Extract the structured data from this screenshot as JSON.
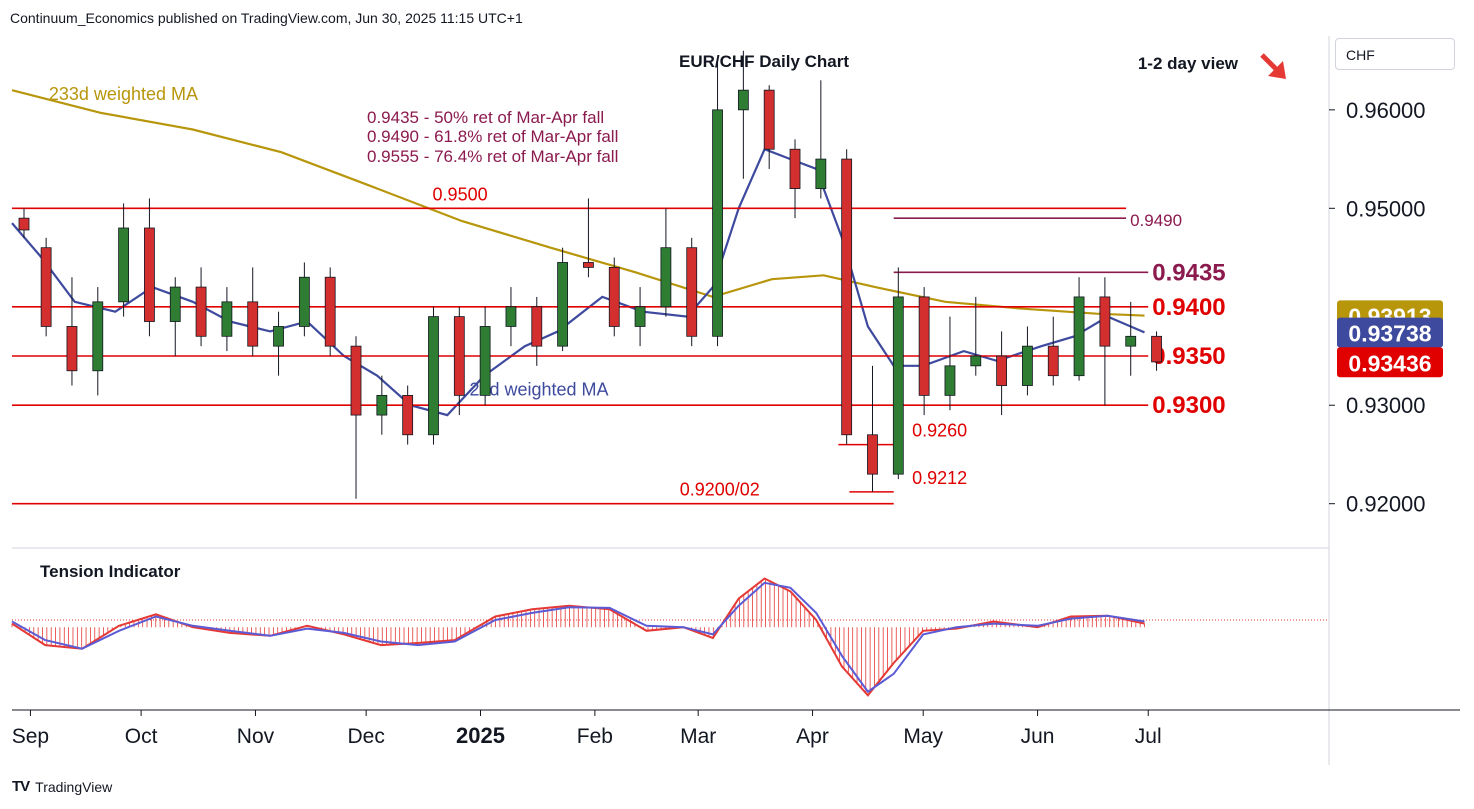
{
  "header": {
    "publisher": "Continuum_Economics published on TradingView.com, Jun 30, 2025 11:15 UTC+1"
  },
  "currency_selector": {
    "value": "CHF"
  },
  "footer": {
    "logo_text": "TV",
    "brand": "TradingView"
  },
  "colors": {
    "bull": "#2e7d32",
    "bear": "#d32f2f",
    "ma21": "#3e4a9e",
    "ma233": "#b8960c",
    "support": "#e00000",
    "fib": "#8b1a4e",
    "arrow": "#e53935"
  },
  "chart_data": [
    {
      "type": "candlestick",
      "title": "EUR/CHF Daily Chart",
      "subtitle": "1-2 day view",
      "direction": "down",
      "ylim": [
        0.9155,
        0.9675
      ],
      "x_axis": {
        "range": [
          "2024-08-27",
          "2025-08-19"
        ],
        "ticks": [
          {
            "date": "2024-09-01",
            "label": "Sep"
          },
          {
            "date": "2024-10-01",
            "label": "Oct"
          },
          {
            "date": "2024-11-01",
            "label": "Nov"
          },
          {
            "date": "2024-12-01",
            "label": "Dec"
          },
          {
            "date": "2025-01-01",
            "label": "2025"
          },
          {
            "date": "2025-02-01",
            "label": "Feb"
          },
          {
            "date": "2025-03-01",
            "label": "Mar"
          },
          {
            "date": "2025-04-01",
            "label": "Apr"
          },
          {
            "date": "2025-05-01",
            "label": "May"
          },
          {
            "date": "2025-06-01",
            "label": "Jun"
          },
          {
            "date": "2025-07-01",
            "label": "Jul"
          }
        ]
      },
      "y_axis": {
        "ticks": [
          {
            "value": 0.96,
            "label": "0.96000"
          },
          {
            "value": 0.95,
            "label": "0.95000"
          },
          {
            "value": 0.93,
            "label": "0.93000"
          },
          {
            "value": 0.92,
            "label": "0.92000"
          }
        ]
      },
      "price_tags": [
        {
          "value": 0.93913,
          "label": "0.93913",
          "color": "#b8960c"
        },
        {
          "value": 0.93738,
          "label": "0.93738",
          "color": "#3e4a9e"
        },
        {
          "value": 0.93436,
          "label": "0.93436",
          "color": "#e00000"
        }
      ],
      "levels": [
        {
          "value": 0.95,
          "label": "0.9500",
          "from": "2024-08-27",
          "to": "2025-06-25",
          "label_date": "2024-12-19",
          "color": "#e00000"
        },
        {
          "value": 0.949,
          "label": "0.9490",
          "from": "2025-04-23",
          "to": "2025-06-25",
          "color": "#8b1a4e"
        },
        {
          "value": 0.9435,
          "label": "0.9435",
          "from": "2025-04-23",
          "to": "2025-07-01",
          "color": "#8b1a4e"
        },
        {
          "value": 0.94,
          "label": "0.9400",
          "from": "2024-08-27",
          "to": "2025-07-01",
          "color": "#e00000"
        },
        {
          "value": 0.935,
          "label": "0.9350",
          "from": "2024-08-27",
          "to": "2025-07-01",
          "color": "#e00000"
        },
        {
          "value": 0.93,
          "label": "0.9300",
          "from": "2024-08-27",
          "to": "2025-07-01",
          "color": "#e00000"
        },
        {
          "value": 0.926,
          "label": "0.9260",
          "from": "2025-04-08",
          "to": "2025-04-23",
          "label_date": "2025-04-28",
          "color": "#e00000"
        },
        {
          "value": 0.9212,
          "label": "0.9212",
          "from": "2025-04-11",
          "to": "2025-04-23",
          "label_date": "2025-04-28",
          "color": "#e00000"
        },
        {
          "value": 0.92,
          "label": "0.9200/02",
          "from": "2024-08-27",
          "to": "2025-04-23",
          "label_date": "2025-02-24",
          "color": "#e00000"
        }
      ],
      "fib_notes": [
        "0.9435 - 50% ret of Mar-Apr fall",
        "0.9490 - 61.8% ret of Mar-Apr fall",
        "0.9555 - 76.4% ret of Mar-Apr fall"
      ],
      "series": [
        {
          "name": "233d weighted MA",
          "color": "#b8960c",
          "label_date": "2024-09-06",
          "label_value": 0.961,
          "x": [
            "2024-08-27",
            "2024-09-20",
            "2024-10-15",
            "2024-11-08",
            "2024-12-02",
            "2024-12-27",
            "2025-01-20",
            "2025-02-12",
            "2025-03-05",
            "2025-03-21",
            "2025-04-04",
            "2025-04-18",
            "2025-05-07",
            "2025-05-28",
            "2025-06-17",
            "2025-06-30"
          ],
          "y": [
            0.962,
            0.9597,
            0.958,
            0.9557,
            0.9523,
            0.9487,
            0.946,
            0.9435,
            0.941,
            0.9428,
            0.9432,
            0.942,
            0.9405,
            0.9398,
            0.9393,
            0.9391
          ]
        },
        {
          "name": "21d weighted MA",
          "color": "#3e4a9e",
          "label_date": "2024-12-29",
          "label_value": 0.931,
          "x": [
            "2024-08-27",
            "2024-09-04",
            "2024-09-13",
            "2024-09-24",
            "2024-10-04",
            "2024-10-15",
            "2024-10-25",
            "2024-11-05",
            "2024-11-15",
            "2024-11-25",
            "2024-12-04",
            "2024-12-13",
            "2024-12-23",
            "2025-01-02",
            "2025-01-13",
            "2025-01-22",
            "2025-02-03",
            "2025-02-14",
            "2025-02-26",
            "2025-03-05",
            "2025-03-12",
            "2025-03-19",
            "2025-03-26",
            "2025-04-02",
            "2025-04-09",
            "2025-04-16",
            "2025-04-23",
            "2025-05-01",
            "2025-05-12",
            "2025-05-21",
            "2025-06-02",
            "2025-06-11",
            "2025-06-20",
            "2025-06-30"
          ],
          "y": [
            0.9485,
            0.945,
            0.9405,
            0.9395,
            0.942,
            0.9405,
            0.9385,
            0.9375,
            0.9385,
            0.935,
            0.933,
            0.93,
            0.929,
            0.933,
            0.936,
            0.9375,
            0.941,
            0.9395,
            0.939,
            0.942,
            0.95,
            0.956,
            0.955,
            0.954,
            0.947,
            0.938,
            0.934,
            0.934,
            0.9355,
            0.9345,
            0.936,
            0.937,
            0.939,
            0.9374
          ]
        }
      ],
      "candles": [
        {
          "d": "2024-08-27",
          "o": 0.949,
          "h": 0.95,
          "l": 0.947,
          "c": 0.9478
        },
        {
          "d": "2024-09-02",
          "o": 0.946,
          "h": 0.947,
          "l": 0.937,
          "c": 0.938
        },
        {
          "d": "2024-09-09",
          "o": 0.938,
          "h": 0.943,
          "l": 0.932,
          "c": 0.9335
        },
        {
          "d": "2024-09-16",
          "o": 0.9335,
          "h": 0.942,
          "l": 0.931,
          "c": 0.9405
        },
        {
          "d": "2024-09-23",
          "o": 0.9405,
          "h": 0.9505,
          "l": 0.939,
          "c": 0.948
        },
        {
          "d": "2024-09-30",
          "o": 0.948,
          "h": 0.951,
          "l": 0.937,
          "c": 0.9385
        },
        {
          "d": "2024-10-07",
          "o": 0.9385,
          "h": 0.943,
          "l": 0.935,
          "c": 0.942
        },
        {
          "d": "2024-10-14",
          "o": 0.942,
          "h": 0.944,
          "l": 0.936,
          "c": 0.937
        },
        {
          "d": "2024-10-21",
          "o": 0.937,
          "h": 0.942,
          "l": 0.9355,
          "c": 0.9405
        },
        {
          "d": "2024-10-28",
          "o": 0.9405,
          "h": 0.944,
          "l": 0.935,
          "c": 0.936
        },
        {
          "d": "2024-11-04",
          "o": 0.936,
          "h": 0.9395,
          "l": 0.933,
          "c": 0.938
        },
        {
          "d": "2024-11-11",
          "o": 0.938,
          "h": 0.9445,
          "l": 0.937,
          "c": 0.943
        },
        {
          "d": "2024-11-18",
          "o": 0.943,
          "h": 0.944,
          "l": 0.935,
          "c": 0.936
        },
        {
          "d": "2024-11-25",
          "o": 0.936,
          "h": 0.937,
          "l": 0.9205,
          "c": 0.929
        },
        {
          "d": "2024-12-02",
          "o": 0.929,
          "h": 0.933,
          "l": 0.927,
          "c": 0.931
        },
        {
          "d": "2024-12-09",
          "o": 0.931,
          "h": 0.932,
          "l": 0.926,
          "c": 0.927
        },
        {
          "d": "2024-12-16",
          "o": 0.927,
          "h": 0.94,
          "l": 0.926,
          "c": 0.939
        },
        {
          "d": "2024-12-23",
          "o": 0.939,
          "h": 0.94,
          "l": 0.929,
          "c": 0.931
        },
        {
          "d": "2024-12-30",
          "o": 0.931,
          "h": 0.94,
          "l": 0.93,
          "c": 0.938
        },
        {
          "d": "2025-01-06",
          "o": 0.938,
          "h": 0.942,
          "l": 0.936,
          "c": 0.94
        },
        {
          "d": "2025-01-13",
          "o": 0.94,
          "h": 0.941,
          "l": 0.934,
          "c": 0.936
        },
        {
          "d": "2025-01-20",
          "o": 0.936,
          "h": 0.946,
          "l": 0.9355,
          "c": 0.9445
        },
        {
          "d": "2025-01-27",
          "o": 0.9445,
          "h": 0.951,
          "l": 0.943,
          "c": 0.944
        },
        {
          "d": "2025-02-03",
          "o": 0.944,
          "h": 0.945,
          "l": 0.937,
          "c": 0.938
        },
        {
          "d": "2025-02-10",
          "o": 0.938,
          "h": 0.942,
          "l": 0.936,
          "c": 0.94
        },
        {
          "d": "2025-02-17",
          "o": 0.94,
          "h": 0.95,
          "l": 0.939,
          "c": 0.946
        },
        {
          "d": "2025-02-24",
          "o": 0.946,
          "h": 0.947,
          "l": 0.936,
          "c": 0.937
        },
        {
          "d": "2025-03-03",
          "o": 0.937,
          "h": 0.965,
          "l": 0.936,
          "c": 0.96
        },
        {
          "d": "2025-03-10",
          "o": 0.96,
          "h": 0.966,
          "l": 0.953,
          "c": 0.962
        },
        {
          "d": "2025-03-17",
          "o": 0.962,
          "h": 0.9625,
          "l": 0.954,
          "c": 0.956
        },
        {
          "d": "2025-03-24",
          "o": 0.956,
          "h": 0.957,
          "l": 0.949,
          "c": 0.952
        },
        {
          "d": "2025-03-31",
          "o": 0.952,
          "h": 0.963,
          "l": 0.951,
          "c": 0.955
        },
        {
          "d": "2025-04-07",
          "o": 0.955,
          "h": 0.956,
          "l": 0.926,
          "c": 0.927
        },
        {
          "d": "2025-04-14",
          "o": 0.927,
          "h": 0.934,
          "l": 0.9212,
          "c": 0.923
        },
        {
          "d": "2025-04-21",
          "o": 0.923,
          "h": 0.944,
          "l": 0.9225,
          "c": 0.941
        },
        {
          "d": "2025-04-28",
          "o": 0.941,
          "h": 0.942,
          "l": 0.929,
          "c": 0.931
        },
        {
          "d": "2025-05-05",
          "o": 0.931,
          "h": 0.939,
          "l": 0.9295,
          "c": 0.934
        },
        {
          "d": "2025-05-12",
          "o": 0.934,
          "h": 0.941,
          "l": 0.933,
          "c": 0.935
        },
        {
          "d": "2025-05-19",
          "o": 0.935,
          "h": 0.9375,
          "l": 0.929,
          "c": 0.932
        },
        {
          "d": "2025-05-26",
          "o": 0.932,
          "h": 0.938,
          "l": 0.931,
          "c": 0.936
        },
        {
          "d": "2025-06-02",
          "o": 0.936,
          "h": 0.939,
          "l": 0.932,
          "c": 0.933
        },
        {
          "d": "2025-06-09",
          "o": 0.933,
          "h": 0.943,
          "l": 0.9325,
          "c": 0.941
        },
        {
          "d": "2025-06-16",
          "o": 0.941,
          "h": 0.943,
          "l": 0.93,
          "c": 0.936
        },
        {
          "d": "2025-06-23",
          "o": 0.936,
          "h": 0.9405,
          "l": 0.933,
          "c": 0.937
        },
        {
          "d": "2025-06-30",
          "o": 0.937,
          "h": 0.9375,
          "l": 0.9335,
          "c": 0.9344
        }
      ]
    },
    {
      "type": "line",
      "title": "Tension Indicator",
      "ylim": [
        -1.1,
        1.05
      ],
      "series": [
        {
          "name": "",
          "color": "#e53935",
          "x": [
            "2024-08-27",
            "2024-09-05",
            "2024-09-15",
            "2024-09-25",
            "2024-10-05",
            "2024-10-15",
            "2024-10-25",
            "2024-11-05",
            "2024-11-15",
            "2024-11-25",
            "2024-12-05",
            "2024-12-15",
            "2024-12-25",
            "2025-01-05",
            "2025-01-15",
            "2025-01-25",
            "2025-02-05",
            "2025-02-15",
            "2025-02-25",
            "2025-03-05",
            "2025-03-12",
            "2025-03-19",
            "2025-03-26",
            "2025-04-02",
            "2025-04-09",
            "2025-04-16",
            "2025-04-23",
            "2025-05-01",
            "2025-05-10",
            "2025-05-20",
            "2025-06-01",
            "2025-06-10",
            "2025-06-20",
            "2025-06-30"
          ],
          "y": [
            0.05,
            -0.25,
            -0.3,
            0.02,
            0.18,
            0.0,
            -0.08,
            -0.12,
            0.02,
            -0.1,
            -0.25,
            -0.22,
            -0.18,
            0.15,
            0.25,
            0.3,
            0.25,
            -0.05,
            0.0,
            -0.15,
            0.4,
            0.68,
            0.5,
            0.1,
            -0.55,
            -0.95,
            -0.5,
            -0.05,
            -0.02,
            0.08,
            0.0,
            0.15,
            0.16,
            0.05
          ]
        },
        {
          "name": "",
          "color": "#5b5bd6",
          "x": [
            "2024-08-27",
            "2024-09-05",
            "2024-09-15",
            "2024-09-25",
            "2024-10-05",
            "2024-10-15",
            "2024-10-25",
            "2024-11-05",
            "2024-11-15",
            "2024-11-25",
            "2024-12-05",
            "2024-12-15",
            "2024-12-25",
            "2025-01-05",
            "2025-01-15",
            "2025-01-25",
            "2025-02-05",
            "2025-02-15",
            "2025-02-25",
            "2025-03-05",
            "2025-03-12",
            "2025-03-19",
            "2025-03-26",
            "2025-04-02",
            "2025-04-09",
            "2025-04-16",
            "2025-04-23",
            "2025-05-01",
            "2025-05-10",
            "2025-05-20",
            "2025-06-01",
            "2025-06-10",
            "2025-06-20",
            "2025-06-30"
          ],
          "y": [
            0.08,
            -0.18,
            -0.3,
            -0.05,
            0.15,
            0.02,
            -0.05,
            -0.12,
            -0.02,
            -0.08,
            -0.2,
            -0.25,
            -0.2,
            0.1,
            0.2,
            0.28,
            0.27,
            0.02,
            0.0,
            -0.1,
            0.3,
            0.62,
            0.55,
            0.2,
            -0.4,
            -0.9,
            -0.65,
            -0.1,
            0.0,
            0.05,
            0.02,
            0.12,
            0.16,
            0.08
          ]
        }
      ]
    }
  ]
}
